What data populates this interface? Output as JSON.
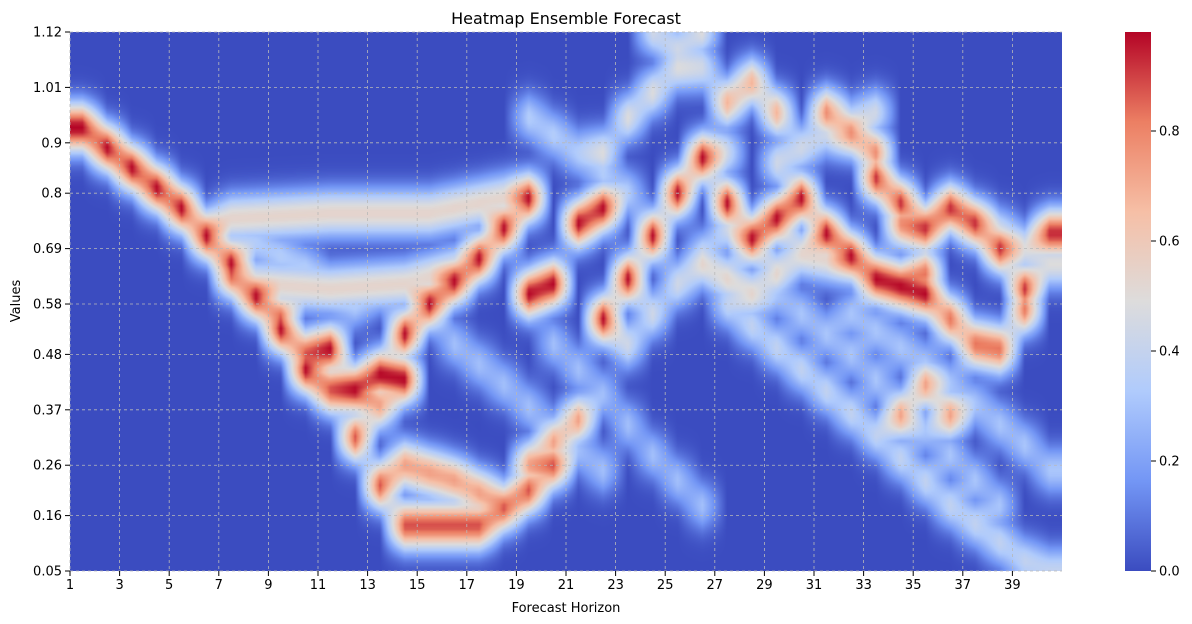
{
  "chart_data": {
    "type": "heatmap",
    "title": "Heatmap Ensemble Forecast",
    "xlabel": "Forecast Horizon",
    "ylabel": "Values",
    "x_ticks": [
      "1",
      "3",
      "5",
      "7",
      "9",
      "11",
      "13",
      "15",
      "17",
      "19",
      "21",
      "23",
      "25",
      "27",
      "29",
      "31",
      "33",
      "35",
      "37",
      "39"
    ],
    "y_ticks": [
      "0.05",
      "0.16",
      "0.26",
      "0.37",
      "0.48",
      "0.58",
      "0.69",
      "0.8",
      "0.9",
      "1.01",
      "1.12"
    ],
    "x_range": [
      1,
      40
    ],
    "y_range": [
      0.05,
      1.12
    ],
    "colorbar": {
      "ticks": [
        "0.0",
        "0.2",
        "0.4",
        "0.6",
        "0.8"
      ],
      "range": [
        0,
        0.98
      ],
      "colormap": "coolwarm",
      "colors": [
        "#3b4cc0",
        "#7396f5",
        "#b0cbfc",
        "#dddcdc",
        "#f6bfa6",
        "#ec7f63",
        "#b40426"
      ]
    },
    "grid": true,
    "ensemble_tracks": [
      {
        "points": [
          [
            1,
            0.93
          ],
          [
            3,
            0.85
          ],
          [
            5,
            0.77
          ],
          [
            7,
            0.66
          ],
          [
            9,
            0.53
          ],
          [
            10,
            0.45
          ],
          [
            11,
            0.49
          ],
          [
            12,
            0.41
          ],
          [
            13,
            0.44
          ],
          [
            14,
            0.43
          ]
        ],
        "intensity": 1.0
      },
      {
        "points": [
          [
            7,
            0.64
          ],
          [
            9,
            0.55
          ],
          [
            11,
            0.41
          ],
          [
            13,
            0.22
          ],
          [
            14,
            0.14
          ],
          [
            16,
            0.14
          ],
          [
            17,
            0.14
          ],
          [
            19,
            0.21
          ],
          [
            20,
            0.26
          ]
        ],
        "intensity": 0.9
      },
      {
        "points": [
          [
            13,
            0.38
          ],
          [
            14,
            0.26
          ],
          [
            16,
            0.23
          ],
          [
            18,
            0.18
          ],
          [
            19,
            0.26
          ],
          [
            21,
            0.35
          ]
        ],
        "intensity": 0.75
      },
      {
        "points": [
          [
            14,
            0.52
          ],
          [
            15,
            0.58
          ],
          [
            17,
            0.67
          ],
          [
            19,
            0.79
          ]
        ],
        "intensity": 1.0
      },
      {
        "points": [
          [
            19,
            0.6
          ],
          [
            20,
            0.62
          ],
          [
            21,
            0.74
          ],
          [
            22,
            0.77
          ]
        ],
        "intensity": 1.0
      },
      {
        "points": [
          [
            22,
            0.55
          ],
          [
            23,
            0.63
          ],
          [
            25,
            0.8
          ],
          [
            26,
            0.87
          ],
          [
            27,
            0.78
          ],
          [
            28,
            0.71
          ],
          [
            29,
            0.75
          ],
          [
            30,
            0.79
          ],
          [
            31,
            0.72
          ],
          [
            33,
            0.63
          ],
          [
            35,
            0.6
          ]
        ],
        "intensity": 1.0
      },
      {
        "points": [
          [
            33,
            0.83
          ],
          [
            35,
            0.73
          ],
          [
            36,
            0.77
          ],
          [
            37,
            0.74
          ],
          [
            38,
            0.69
          ],
          [
            39,
            0.61
          ],
          [
            40,
            0.72
          ]
        ],
        "intensity": 0.95
      },
      {
        "points": [
          [
            35,
            0.64
          ],
          [
            36,
            0.55
          ],
          [
            37,
            0.5
          ],
          [
            38,
            0.49
          ],
          [
            39,
            0.57
          ]
        ],
        "intensity": 0.85
      },
      {
        "points": [
          [
            31,
            0.96
          ],
          [
            33,
            0.88
          ],
          [
            34,
            0.74
          ],
          [
            35,
            0.6
          ]
        ],
        "intensity": 0.8
      },
      {
        "points": [
          [
            34,
            0.36
          ],
          [
            35,
            0.42
          ],
          [
            36,
            0.36
          ]
        ],
        "intensity": 0.75
      },
      {
        "points": [
          [
            7,
            0.75
          ],
          [
            11,
            0.76
          ],
          [
            15,
            0.76
          ],
          [
            19,
            0.8
          ]
        ],
        "intensity": 0.55
      },
      {
        "points": [
          [
            8,
            0.62
          ],
          [
            11,
            0.61
          ],
          [
            14,
            0.62
          ],
          [
            17,
            0.66
          ]
        ],
        "intensity": 0.55
      },
      {
        "points": [
          [
            27,
            0.98
          ],
          [
            28,
            1.02
          ],
          [
            29,
            0.96
          ]
        ],
        "intensity": 0.7
      },
      {
        "points": [
          [
            22,
            0.88
          ],
          [
            23,
            0.95
          ],
          [
            25,
            1.05
          ],
          [
            26,
            1.12
          ]
        ],
        "intensity": 0.5
      },
      {
        "points": [
          [
            24,
            1.12
          ],
          [
            26,
            1.05
          ],
          [
            27,
            0.88
          ]
        ],
        "intensity": 0.45
      },
      {
        "points": [
          [
            26,
            0.66
          ],
          [
            28,
            0.6
          ],
          [
            30,
            0.68
          ],
          [
            32,
            0.66
          ]
        ],
        "intensity": 0.55
      },
      {
        "points": [
          [
            23,
            0.5
          ],
          [
            25,
            0.62
          ],
          [
            27,
            0.73
          ]
        ],
        "intensity": 0.45
      },
      {
        "points": [
          [
            27,
            0.58
          ],
          [
            30,
            0.45
          ],
          [
            33,
            0.32
          ],
          [
            36,
            0.18
          ],
          [
            39,
            0.07
          ],
          [
            40,
            0.05
          ]
        ],
        "intensity": 0.4
      },
      {
        "points": [
          [
            29,
            0.6
          ],
          [
            32,
            0.48
          ],
          [
            34,
            0.38
          ],
          [
            36,
            0.28
          ],
          [
            38,
            0.18
          ]
        ],
        "intensity": 0.32
      },
      {
        "points": [
          [
            32,
            0.56
          ],
          [
            35,
            0.46
          ],
          [
            37,
            0.38
          ],
          [
            39,
            0.3
          ],
          [
            40,
            0.25
          ]
        ],
        "intensity": 0.32
      },
      {
        "points": [
          [
            20,
            0.5
          ],
          [
            22,
            0.4
          ],
          [
            24,
            0.28
          ],
          [
            26,
            0.18
          ]
        ],
        "intensity": 0.3
      },
      {
        "points": [
          [
            16,
            0.5
          ],
          [
            18,
            0.42
          ],
          [
            20,
            0.33
          ],
          [
            22,
            0.25
          ]
        ],
        "intensity": 0.3
      },
      {
        "points": [
          [
            19,
            0.95
          ],
          [
            21,
            0.88
          ],
          [
            23,
            0.8
          ]
        ],
        "intensity": 0.35
      },
      {
        "points": [
          [
            36,
            0.78
          ],
          [
            38,
            0.72
          ],
          [
            40,
            0.66
          ]
        ],
        "intensity": 0.5
      },
      {
        "points": [
          [
            29,
            0.86
          ],
          [
            31,
            0.92
          ],
          [
            33,
            0.96
          ]
        ],
        "intensity": 0.45
      },
      {
        "points": [
          [
            8,
            0.7
          ],
          [
            10,
            0.65
          ],
          [
            12,
            0.58
          ]
        ],
        "intensity": 0.35
      }
    ]
  }
}
